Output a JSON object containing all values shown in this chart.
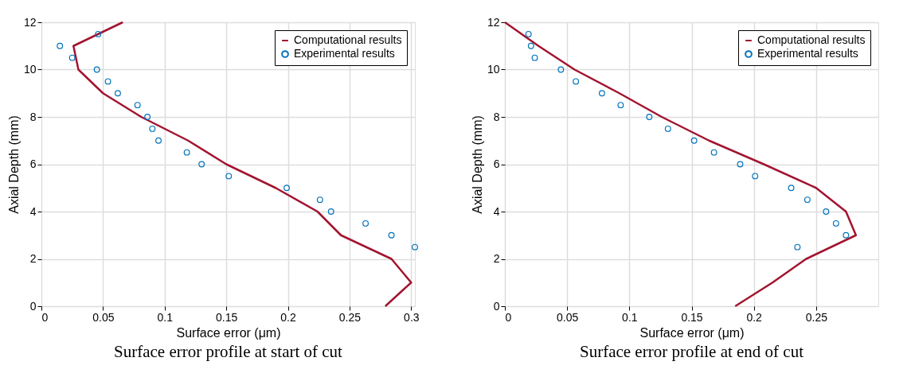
{
  "chart_data": [
    {
      "type": "line",
      "title": "Surface error profile at start of cut",
      "xlabel": "Surface error (μm)",
      "ylabel": "Axial Depth (mm)",
      "xlim": [
        0,
        0.303
      ],
      "xticks": [
        0,
        0.05,
        0.1,
        0.15,
        0.2,
        0.25,
        0.3
      ],
      "ylim": [
        0,
        12
      ],
      "yticks": [
        0,
        2,
        4,
        6,
        8,
        10,
        12
      ],
      "grid": true,
      "legend": "top right",
      "series": [
        {
          "name": "Computational results",
          "color": "#a2142f",
          "line_style": "solid",
          "x": [
            0.066,
            0.026,
            0.03,
            0.05,
            0.081,
            0.119,
            0.15,
            0.19,
            0.224,
            0.243,
            0.284,
            0.3,
            0.279
          ],
          "values": [
            12,
            11,
            10,
            9,
            8,
            7,
            6,
            5,
            4,
            3,
            2,
            1,
            0
          ]
        },
        {
          "name": "Experimental results",
          "type": "scatter",
          "color": "#0072bd",
          "marker": "circle",
          "x": [
            0.046,
            0.015,
            0.025,
            0.045,
            0.054,
            0.062,
            0.078,
            0.086,
            0.09,
            0.095,
            0.118,
            0.13,
            0.152,
            0.199,
            0.226,
            0.235,
            0.263,
            0.284,
            0.303
          ],
          "values": [
            11.5,
            11,
            10.5,
            10,
            9.5,
            9,
            8.5,
            8,
            7.5,
            7,
            6.5,
            6,
            5.5,
            5,
            4.5,
            4,
            3.5,
            3,
            2.5
          ]
        }
      ]
    },
    {
      "type": "line",
      "title": "Surface error profile at end of cut",
      "xlabel": "Surface error (μm)",
      "ylabel": "Axial Depth (mm)",
      "xlim": [
        0,
        0.3
      ],
      "xticks": [
        0,
        0.05,
        0.1,
        0.15,
        0.2,
        0.25
      ],
      "ylim": [
        0,
        12
      ],
      "yticks": [
        0,
        2,
        4,
        6,
        8,
        10,
        12
      ],
      "grid": true,
      "legend": "top right",
      "series": [
        {
          "name": "Computational results",
          "color": "#a2142f",
          "line_style": "solid",
          "x": [
            0,
            0.027,
            0.056,
            0.092,
            0.126,
            0.164,
            0.208,
            0.25,
            0.274,
            0.282,
            0.242,
            0.215,
            0.185
          ],
          "values": [
            12,
            11,
            10,
            9,
            8,
            7,
            6,
            5,
            4,
            3,
            2,
            1,
            0
          ]
        },
        {
          "name": "Experimental results",
          "type": "scatter",
          "color": "#0072bd",
          "marker": "circle",
          "x": [
            0.019,
            0.021,
            0.024,
            0.045,
            0.057,
            0.078,
            0.093,
            0.116,
            0.131,
            0.152,
            0.168,
            0.189,
            0.201,
            0.23,
            0.243,
            0.258,
            0.266,
            0.274,
            0.235
          ],
          "values": [
            11.5,
            11,
            10.5,
            10,
            9.5,
            9,
            8.5,
            8,
            7.5,
            7,
            6.5,
            6,
            5.5,
            5,
            4.5,
            4,
            3.5,
            3,
            2.5
          ]
        }
      ]
    }
  ]
}
